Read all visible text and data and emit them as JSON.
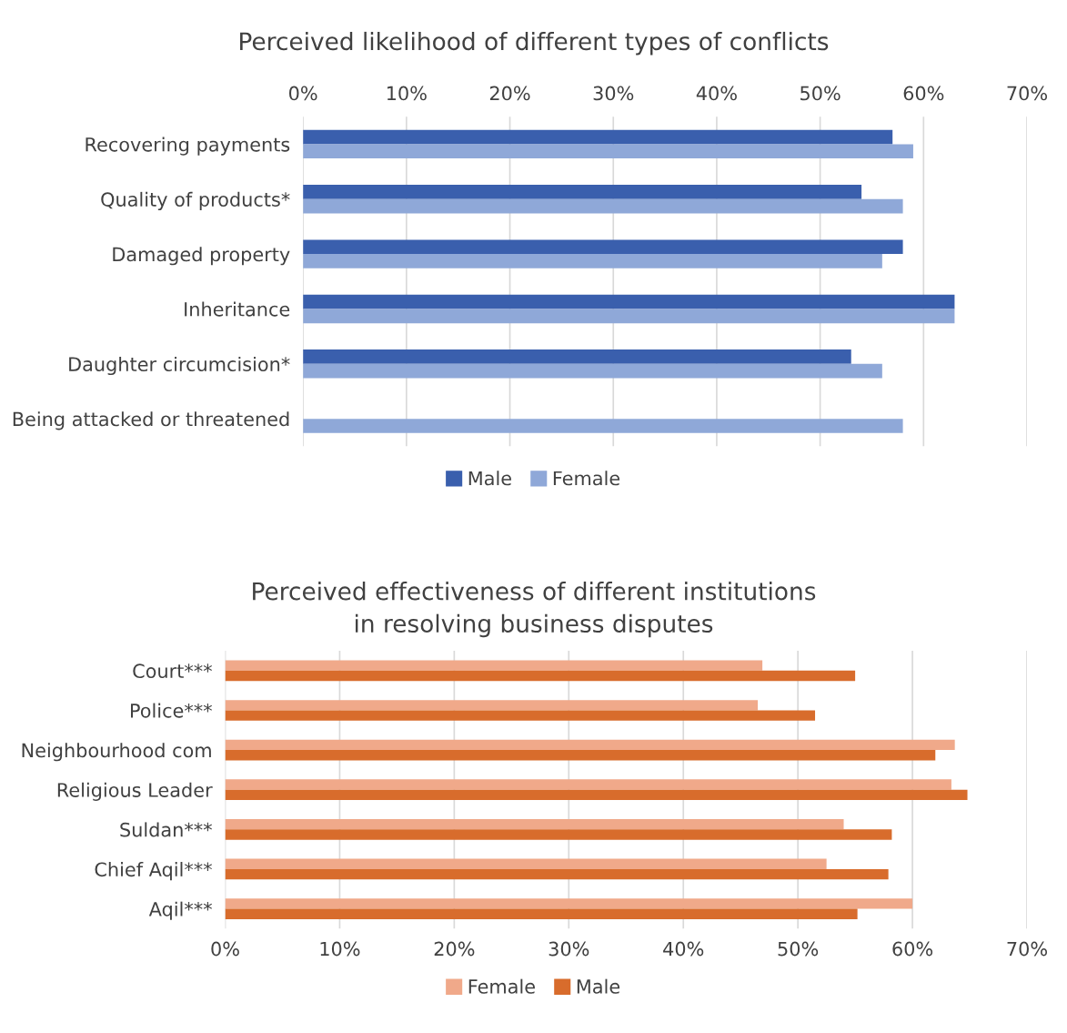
{
  "chart_data": [
    {
      "type": "bar",
      "orientation": "horizontal",
      "title": "Perceived likelihood of different types of conflicts",
      "categories": [
        "Recovering payments",
        "Quality of products*",
        "Damaged property",
        "Inheritance",
        "Daughter circumcision*",
        "Being attacked or threatened"
      ],
      "series": [
        {
          "name": "Male",
          "color": "#3a5fad",
          "values": [
            57,
            54,
            58,
            63,
            53,
            null
          ]
        },
        {
          "name": "Female",
          "color": "#8fa8d8",
          "values": [
            59,
            58,
            56,
            63,
            56,
            58
          ]
        }
      ],
      "xlim": [
        0,
        70
      ],
      "xticks": [
        {
          "value": 0,
          "label": "0%"
        },
        {
          "value": 10,
          "label": "10%"
        },
        {
          "value": 20,
          "label": "20%"
        },
        {
          "value": 30,
          "label": "30%"
        },
        {
          "value": 40,
          "label": "40%"
        },
        {
          "value": 50,
          "label": "50%"
        },
        {
          "value": 60,
          "label": "60%"
        },
        {
          "value": 70,
          "label": "70%"
        }
      ],
      "grid": "x",
      "legend": "bottom"
    },
    {
      "type": "bar",
      "orientation": "horizontal",
      "title": "Perceived effectiveness of different institutions\nin resolving business disputes",
      "categories": [
        "Court***",
        "Police***",
        "Neighbourhood com",
        "Religious Leader",
        "Suldan***",
        "Chief Aqil***",
        "Aqil***"
      ],
      "series": [
        {
          "name": "Female",
          "color": "#f0a98a",
          "values": [
            46.9,
            46.5,
            63.7,
            63.4,
            54.0,
            52.5,
            60.0
          ]
        },
        {
          "name": "Male",
          "color": "#d86c2c",
          "values": [
            55.0,
            51.5,
            62.0,
            64.8,
            58.2,
            57.9,
            55.2
          ]
        }
      ],
      "xlim": [
        0,
        70
      ],
      "xticks": [
        {
          "value": 0,
          "label": "0%"
        },
        {
          "value": 10,
          "label": "10%"
        },
        {
          "value": 20,
          "label": "20%"
        },
        {
          "value": 30,
          "label": "30%"
        },
        {
          "value": 40,
          "label": "40%"
        },
        {
          "value": 50,
          "label": "50%"
        },
        {
          "value": 60,
          "label": "60%"
        },
        {
          "value": 70,
          "label": "70%"
        }
      ],
      "grid": "x",
      "legend": "bottom"
    }
  ]
}
